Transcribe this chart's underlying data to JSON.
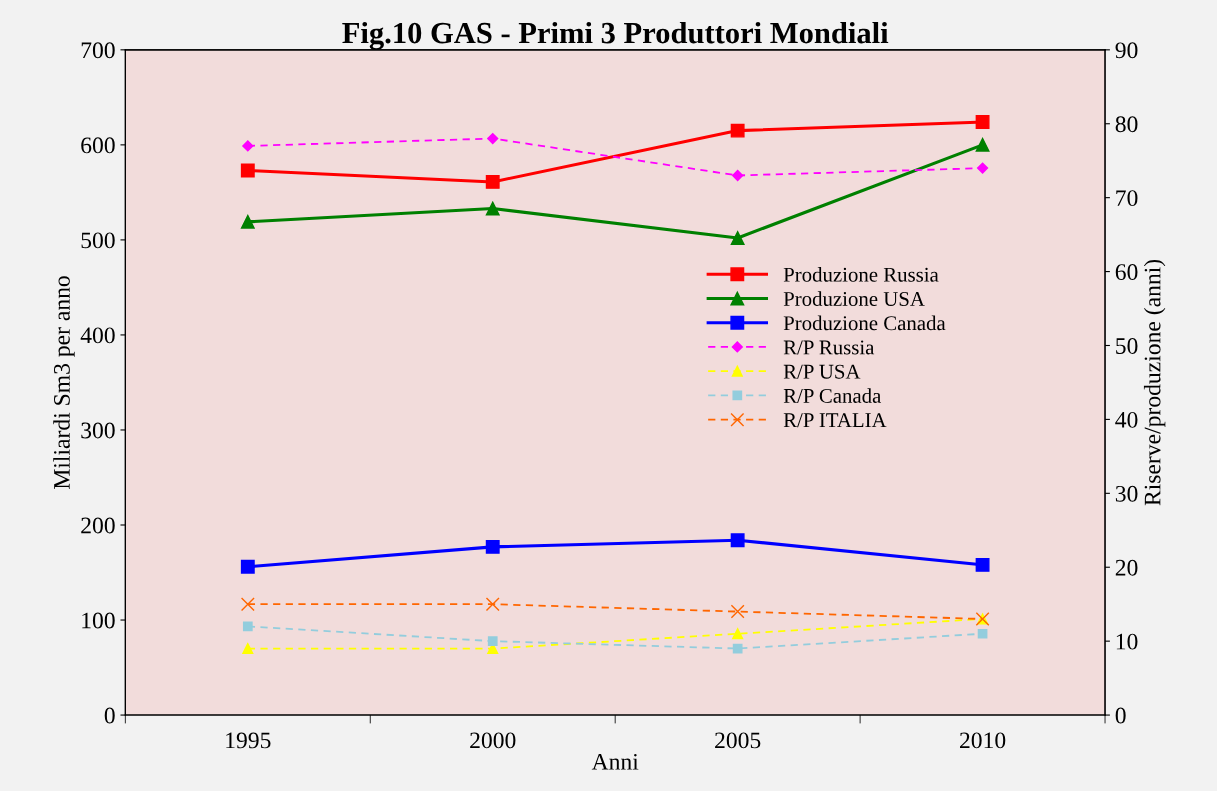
{
  "chart_data": {
    "type": "line",
    "title": "Fig.10 GAS - Primi 3 Produttori Mondiali",
    "xlabel": "Anni",
    "ylabel": "Miliardi Sm3 per anno",
    "y2label": "Riserve/produzione (anni)",
    "categories": [
      "1995",
      "2000",
      "2005",
      "2010"
    ],
    "ylim": [
      0,
      700
    ],
    "yticks": [
      0,
      100,
      200,
      300,
      400,
      500,
      600,
      700
    ],
    "y2lim": [
      0,
      90
    ],
    "y2ticks": [
      0,
      10,
      20,
      30,
      40,
      50,
      60,
      70,
      80,
      90
    ],
    "grid": false,
    "legend": "right",
    "series": [
      {
        "name": "Produzione Russia",
        "color": "#ff0000",
        "values": [
          573,
          561,
          615,
          624
        ],
        "marker": "square",
        "line_style": "solid"
      },
      {
        "name": "Produzione USA",
        "color": "#008000",
        "values": [
          519,
          533,
          502,
          600
        ],
        "marker": "triangle",
        "line_style": "solid"
      },
      {
        "name": "Produzione Canada",
        "color": "#0000ff",
        "values": [
          156,
          177,
          184,
          158
        ],
        "marker": "square",
        "line_style": "solid"
      },
      {
        "name": "R/P Russia",
        "color": "#ff00ff",
        "values": [
          77,
          78,
          73,
          74
        ],
        "marker": "diamond",
        "line_style": "dashed",
        "axis": "y2"
      },
      {
        "name": "R/P USA",
        "color": "#ffff00",
        "values": [
          9,
          9,
          11,
          13
        ],
        "marker": "triangle",
        "line_style": "dashed",
        "axis": "y2"
      },
      {
        "name": "R/P Canada",
        "color": "#93cddd",
        "values": [
          12,
          10,
          9,
          11
        ],
        "marker": "square",
        "line_style": "dashed",
        "axis": "y2"
      },
      {
        "name": "R/P ITALIA",
        "color": "#ff6600",
        "values": [
          15,
          15,
          14,
          13
        ],
        "marker": "cross",
        "line_style": "dashed",
        "axis": "y2"
      }
    ]
  }
}
